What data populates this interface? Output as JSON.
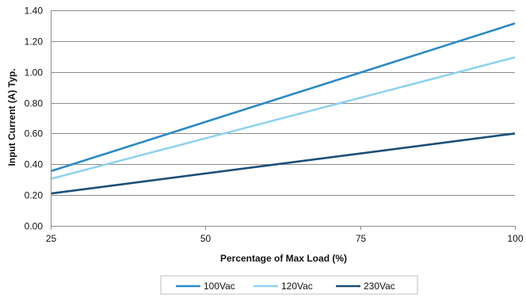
{
  "chart_data": {
    "type": "line",
    "title": "",
    "xlabel": "Percentage of Max Load (%)",
    "ylabel": "Input Current (A) Typ.",
    "x": [
      25,
      100
    ],
    "xlim": [
      25,
      100
    ],
    "ylim": [
      0,
      1.4
    ],
    "x_ticks": [
      "25",
      "50",
      "75",
      "100"
    ],
    "x_tick_values": [
      25,
      50,
      75,
      100
    ],
    "y_ticks": [
      "0.00",
      "0.20",
      "0.40",
      "0.60",
      "0.80",
      "1.00",
      "1.20",
      "1.40"
    ],
    "y_tick_values": [
      0,
      0.2,
      0.4,
      0.6,
      0.8,
      1.0,
      1.2,
      1.4
    ],
    "grid": "horizontal",
    "legend_position": "bottom",
    "series": [
      {
        "name": "100Vac",
        "values": [
          0.355,
          1.315
        ],
        "color": "#2b8ac6"
      },
      {
        "name": "120Vac",
        "values": [
          0.305,
          1.095
        ],
        "color": "#8fd2ee"
      },
      {
        "name": "230Vac",
        "values": [
          0.21,
          0.6
        ],
        "color": "#1b4f78"
      }
    ]
  }
}
